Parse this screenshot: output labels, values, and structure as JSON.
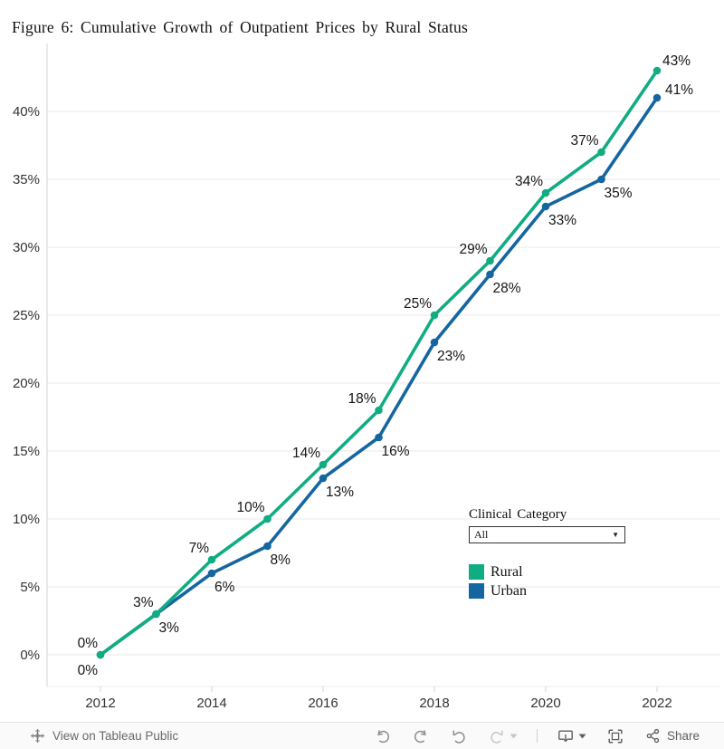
{
  "title": "Figure 6: Cumulative Growth of Outpatient Prices by Rural Status",
  "chart_data": {
    "type": "line",
    "title": "Figure 6: Cumulative Growth of Outpatient Prices by Rural Status",
    "x": [
      2012,
      2013,
      2014,
      2015,
      2016,
      2017,
      2018,
      2019,
      2020,
      2021,
      2022
    ],
    "series": [
      {
        "name": "Rural",
        "color": "#10AC82",
        "values": [
          0,
          3,
          7,
          10,
          14,
          18,
          25,
          29,
          34,
          37,
          43
        ],
        "labels": [
          "0%",
          "3%",
          "7%",
          "10%",
          "14%",
          "18%",
          "25%",
          "29%",
          "34%",
          "37%",
          "43%"
        ]
      },
      {
        "name": "Urban",
        "color": "#1566A0",
        "values": [
          0,
          3,
          6,
          8,
          13,
          16,
          23,
          28,
          33,
          35,
          41
        ],
        "labels": [
          "0%",
          "3%",
          "6%",
          "8%",
          "13%",
          "16%",
          "23%",
          "28%",
          "33%",
          "35%",
          "41%"
        ]
      }
    ],
    "y_axis": {
      "ticks": [
        0,
        5,
        10,
        15,
        20,
        25,
        30,
        35,
        40
      ],
      "tick_labels": [
        "0%",
        "5%",
        "10%",
        "15%",
        "20%",
        "25%",
        "30%",
        "35%",
        "40%"
      ],
      "range": [
        0,
        45
      ],
      "unit": "percent"
    },
    "x_axis": {
      "tick_years": [
        2012,
        2014,
        2016,
        2018,
        2020,
        2022
      ],
      "tick_labels": [
        "2012",
        "2014",
        "2016",
        "2018",
        "2020",
        "2022"
      ]
    },
    "grid": true,
    "legend_position": "middle-right"
  },
  "filter": {
    "label": "Clinical Category",
    "value": "All"
  },
  "legend": {
    "items": [
      {
        "label": "Rural",
        "color": "#10AC82"
      },
      {
        "label": "Urban",
        "color": "#1566A0"
      }
    ]
  },
  "toolbar": {
    "view_link": "View on Tableau Public",
    "share_label": "Share",
    "icons": [
      "tableau-logo-icon",
      "undo-icon",
      "redo-icon",
      "revert-icon",
      "refresh-icon",
      "refresh-caret-icon",
      "download-icon",
      "download-caret-icon",
      "fullscreen-icon",
      "share-icon"
    ]
  }
}
